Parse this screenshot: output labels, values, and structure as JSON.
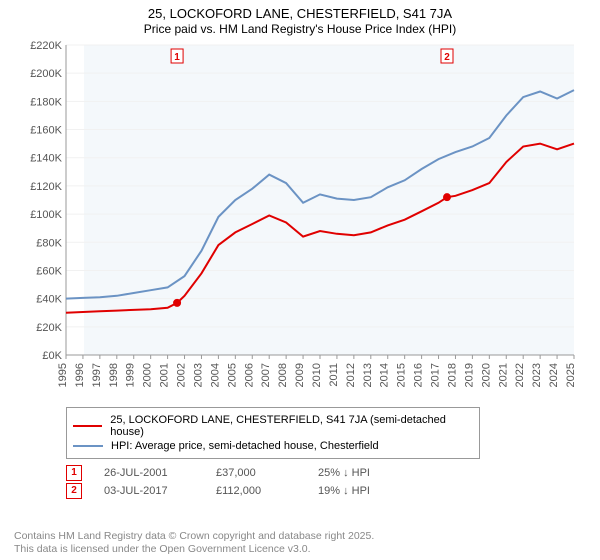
{
  "title_line1": "25, LOCKOFORD LANE, CHESTERFIELD, S41 7JA",
  "title_line2": "Price paid vs. HM Land Registry's House Price Index (HPI)",
  "chart": {
    "type": "line",
    "background_color": "#ffffff",
    "plot_bg_color": "#f4f8fb",
    "grid_color": "#f1f1f1",
    "axis_color": "#999999",
    "axis_font_size": 11,
    "x": {
      "min": 1995,
      "max": 2025,
      "tick_step": 1,
      "label_rotation": -90
    },
    "y": {
      "min": 0,
      "max": 220000,
      "tick_step": 20000,
      "prefix": "£",
      "suffix": "K",
      "divisor": 1000
    },
    "line_width": 2,
    "series": [
      {
        "name": "25, LOCKOFORD LANE, CHESTERFIELD, S41 7JA (semi-detached house)",
        "color": "#e00000",
        "data": [
          [
            1995,
            30000
          ],
          [
            1996,
            30500
          ],
          [
            1997,
            31000
          ],
          [
            1998,
            31500
          ],
          [
            1999,
            32000
          ],
          [
            2000,
            32500
          ],
          [
            2001,
            33500
          ],
          [
            2001.56,
            37000
          ],
          [
            2002,
            42000
          ],
          [
            2003,
            58000
          ],
          [
            2004,
            78000
          ],
          [
            2005,
            87000
          ],
          [
            2006,
            93000
          ],
          [
            2007,
            99000
          ],
          [
            2008,
            94000
          ],
          [
            2009,
            84000
          ],
          [
            2010,
            88000
          ],
          [
            2011,
            86000
          ],
          [
            2012,
            85000
          ],
          [
            2013,
            87000
          ],
          [
            2014,
            92000
          ],
          [
            2015,
            96000
          ],
          [
            2016,
            102000
          ],
          [
            2017,
            108000
          ],
          [
            2017.5,
            112000
          ],
          [
            2018,
            113000
          ],
          [
            2019,
            117000
          ],
          [
            2020,
            122000
          ],
          [
            2021,
            137000
          ],
          [
            2022,
            148000
          ],
          [
            2023,
            150000
          ],
          [
            2024,
            146000
          ],
          [
            2025,
            150000
          ]
        ]
      },
      {
        "name": "HPI: Average price, semi-detached house, Chesterfield",
        "color": "#6b93c4",
        "data": [
          [
            1995,
            40000
          ],
          [
            1996,
            40500
          ],
          [
            1997,
            41000
          ],
          [
            1998,
            42000
          ],
          [
            1999,
            44000
          ],
          [
            2000,
            46000
          ],
          [
            2001,
            48000
          ],
          [
            2002,
            56000
          ],
          [
            2003,
            74000
          ],
          [
            2004,
            98000
          ],
          [
            2005,
            110000
          ],
          [
            2006,
            118000
          ],
          [
            2007,
            128000
          ],
          [
            2008,
            122000
          ],
          [
            2009,
            108000
          ],
          [
            2010,
            114000
          ],
          [
            2011,
            111000
          ],
          [
            2012,
            110000
          ],
          [
            2013,
            112000
          ],
          [
            2014,
            119000
          ],
          [
            2015,
            124000
          ],
          [
            2016,
            132000
          ],
          [
            2017,
            139000
          ],
          [
            2018,
            144000
          ],
          [
            2019,
            148000
          ],
          [
            2020,
            154000
          ],
          [
            2021,
            170000
          ],
          [
            2022,
            183000
          ],
          [
            2023,
            187000
          ],
          [
            2024,
            182000
          ],
          [
            2025,
            188000
          ]
        ]
      }
    ],
    "markers": [
      {
        "label": "1",
        "x": 2001.56,
        "y": 37000
      },
      {
        "label": "2",
        "x": 2017.5,
        "y": 112000
      }
    ]
  },
  "legend": {
    "items": [
      {
        "color": "#e00000",
        "label": "25, LOCKOFORD LANE, CHESTERFIELD, S41 7JA (semi-detached house)"
      },
      {
        "color": "#6b93c4",
        "label": "HPI: Average price, semi-detached house, Chesterfield"
      }
    ]
  },
  "notes": [
    {
      "flag": "1",
      "date": "26-JUL-2001",
      "price": "£37,000",
      "delta": "25% ↓ HPI"
    },
    {
      "flag": "2",
      "date": "03-JUL-2017",
      "price": "£112,000",
      "delta": "19% ↓ HPI"
    }
  ],
  "footer_line1": "Contains HM Land Registry data © Crown copyright and database right 2025.",
  "footer_line2": "This data is licensed under the Open Government Licence v3.0."
}
